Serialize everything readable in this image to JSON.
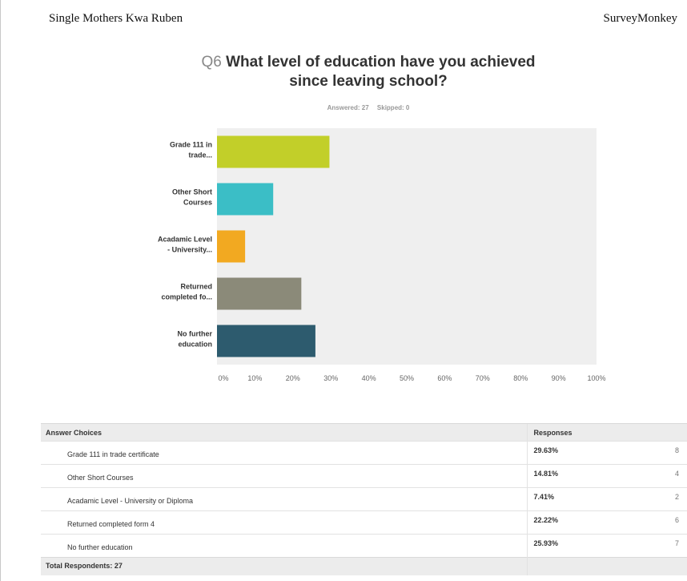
{
  "header": {
    "left": "Single Mothers Kwa Ruben",
    "right": "SurveyMonkey"
  },
  "question": {
    "number": "Q6",
    "title": "What level of education have you achieved since leaving school?",
    "answered": "Answered: 27",
    "skipped": "Skipped: 0"
  },
  "chart_data": {
    "type": "bar",
    "orientation": "horizontal",
    "categories": [
      [
        "Grade 111 in",
        "trade..."
      ],
      [
        "Other Short",
        "Courses"
      ],
      [
        "Acadamic Level",
        "- University..."
      ],
      [
        "Returned",
        "completed fo..."
      ],
      [
        "No further",
        "education"
      ]
    ],
    "values": [
      29.63,
      14.81,
      7.41,
      22.22,
      25.93
    ],
    "colors": [
      "#c2cf29",
      "#3bbec6",
      "#f2a921",
      "#8b8a79",
      "#2d5b6e"
    ],
    "xlim": [
      0,
      100
    ],
    "ticks": [
      "0%",
      "10%",
      "20%",
      "30%",
      "40%",
      "50%",
      "60%",
      "70%",
      "80%",
      "90%",
      "100%"
    ],
    "grid": false
  },
  "table": {
    "header_choices": "Answer Choices",
    "header_responses": "Responses",
    "rows": [
      {
        "choice": "Grade 111 in trade certificate",
        "percent": "29.63%",
        "count": "8"
      },
      {
        "choice": "Other Short Courses",
        "percent": "14.81%",
        "count": "4"
      },
      {
        "choice": "Acadamic Level - University or Diploma",
        "percent": "7.41%",
        "count": "2"
      },
      {
        "choice": "Returned completed form 4",
        "percent": "22.22%",
        "count": "6"
      },
      {
        "choice": "No further education",
        "percent": "25.93%",
        "count": "7"
      }
    ],
    "total": "Total Respondents: 27"
  }
}
